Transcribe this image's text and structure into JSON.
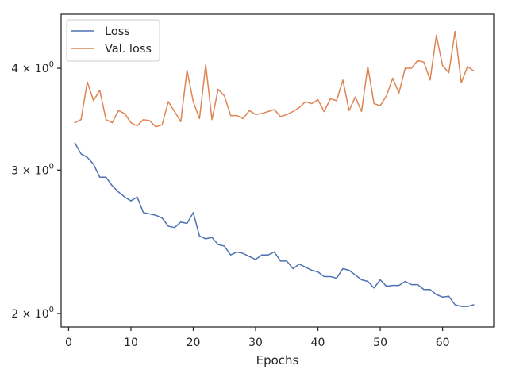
{
  "chart_data": {
    "type": "line",
    "title": "",
    "xlabel": "Epochs",
    "ylabel": "",
    "yscale": "log",
    "xlim": [
      -1.2,
      68.2
    ],
    "ylim": [
      1.925,
      4.66
    ],
    "xticks": [
      0,
      10,
      20,
      30,
      40,
      50,
      60
    ],
    "xtick_labels": [
      "0",
      "10",
      "20",
      "30",
      "40",
      "50",
      "60"
    ],
    "yticks": [
      2,
      3,
      4
    ],
    "ytick_labels": [
      {
        "base": "2 × 10",
        "exp": "0"
      },
      {
        "base": "3 × 10",
        "exp": "0"
      },
      {
        "base": "4 × 10",
        "exp": "0"
      }
    ],
    "grid": false,
    "legend_position": "top-left",
    "colors": {
      "Loss": "#4c72b0",
      "Val. loss": "#dd8452",
      "axes": "#262626"
    },
    "x": [
      1,
      2,
      3,
      4,
      5,
      6,
      7,
      8,
      9,
      10,
      11,
      12,
      13,
      14,
      15,
      16,
      17,
      18,
      19,
      20,
      21,
      22,
      23,
      24,
      25,
      26,
      27,
      28,
      29,
      30,
      31,
      32,
      33,
      34,
      35,
      36,
      37,
      38,
      39,
      40,
      41,
      42,
      43,
      44,
      45,
      46,
      47,
      48,
      49,
      50,
      51,
      52,
      53,
      54,
      55,
      56,
      57,
      58,
      59,
      60,
      61,
      62,
      63,
      64,
      65
    ],
    "series": [
      {
        "name": "Loss",
        "values": [
          3.24,
          3.14,
          3.11,
          3.05,
          2.94,
          2.94,
          2.87,
          2.82,
          2.78,
          2.75,
          2.78,
          2.66,
          2.65,
          2.64,
          2.62,
          2.56,
          2.55,
          2.59,
          2.58,
          2.66,
          2.49,
          2.47,
          2.48,
          2.43,
          2.42,
          2.36,
          2.38,
          2.37,
          2.35,
          2.33,
          2.36,
          2.36,
          2.38,
          2.32,
          2.32,
          2.27,
          2.3,
          2.28,
          2.26,
          2.25,
          2.22,
          2.22,
          2.21,
          2.27,
          2.26,
          2.23,
          2.2,
          2.19,
          2.15,
          2.2,
          2.16,
          2.165,
          2.165,
          2.19,
          2.17,
          2.17,
          2.14,
          2.14,
          2.11,
          2.095,
          2.1,
          2.05,
          2.04,
          2.04,
          2.05
        ]
      },
      {
        "name": "Val. loss",
        "values": [
          3.43,
          3.46,
          3.85,
          3.65,
          3.76,
          3.46,
          3.43,
          3.55,
          3.52,
          3.43,
          3.4,
          3.46,
          3.45,
          3.39,
          3.41,
          3.64,
          3.54,
          3.44,
          3.98,
          3.64,
          3.47,
          4.04,
          3.46,
          3.77,
          3.7,
          3.5,
          3.5,
          3.47,
          3.55,
          3.51,
          3.52,
          3.54,
          3.56,
          3.49,
          3.51,
          3.54,
          3.58,
          3.64,
          3.62,
          3.66,
          3.54,
          3.67,
          3.65,
          3.87,
          3.55,
          3.69,
          3.54,
          4.02,
          3.62,
          3.6,
          3.7,
          3.89,
          3.73,
          4.0,
          4.0,
          4.09,
          4.07,
          3.87,
          4.39,
          4.03,
          3.95,
          4.44,
          3.84,
          4.02,
          3.97
        ]
      }
    ]
  }
}
